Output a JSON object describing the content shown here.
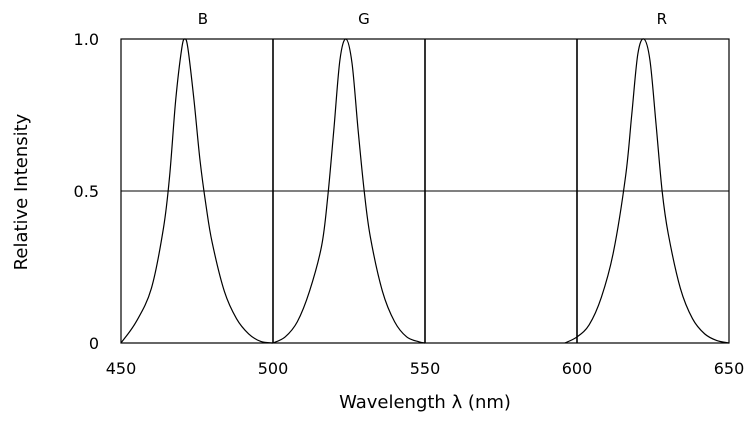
{
  "chart_data": {
    "type": "line",
    "title": "",
    "xlabel": "Wavelength λ (nm)",
    "ylabel": "Relative Intensity",
    "xlim": [
      450,
      650
    ],
    "ylim": [
      0,
      1.0
    ],
    "x_ticks": [
      450,
      500,
      550,
      600,
      650
    ],
    "x_tick_labels": [
      "450",
      "500",
      "550",
      "600",
      "650"
    ],
    "y_ticks": [
      0,
      0.5,
      1.0
    ],
    "y_tick_labels": [
      "0",
      "0.5",
      "1.0"
    ],
    "grid": true,
    "line_color": "#000000",
    "series": [
      {
        "name": "B",
        "x": [
          450,
          455,
          460,
          464,
          466,
          468,
          470,
          471,
          472,
          474,
          476,
          478,
          480,
          484,
          488,
          492,
          496,
          500
        ],
        "y": [
          0.0,
          0.07,
          0.18,
          0.38,
          0.55,
          0.8,
          0.97,
          1.0,
          0.97,
          0.8,
          0.6,
          0.45,
          0.33,
          0.17,
          0.08,
          0.03,
          0.005,
          0.0
        ]
      },
      {
        "name": "G",
        "x": [
          500,
          504,
          508,
          512,
          516,
          518,
          520,
          522,
          524,
          526,
          528,
          530,
          532,
          536,
          540,
          544,
          548,
          550
        ],
        "y": [
          0.0,
          0.02,
          0.07,
          0.17,
          0.32,
          0.48,
          0.7,
          0.93,
          1.0,
          0.92,
          0.7,
          0.5,
          0.35,
          0.17,
          0.07,
          0.02,
          0.004,
          0.0
        ]
      },
      {
        "name": "R",
        "x": [
          596,
          600,
          604,
          608,
          612,
          616,
          618,
          620,
          622,
          624,
          626,
          628,
          630,
          634,
          638,
          642,
          646,
          650
        ],
        "y": [
          0.0,
          0.02,
          0.06,
          0.15,
          0.3,
          0.55,
          0.75,
          0.95,
          1.0,
          0.93,
          0.72,
          0.5,
          0.36,
          0.18,
          0.08,
          0.03,
          0.008,
          0.0
        ]
      }
    ]
  }
}
